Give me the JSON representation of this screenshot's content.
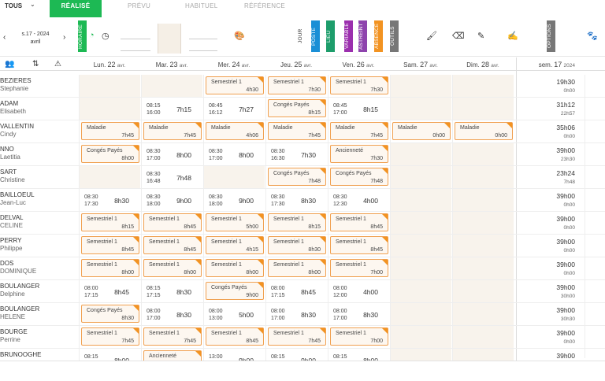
{
  "topbar": {
    "filter_label": "TOUS",
    "tabs": [
      {
        "label": "RÉALISÉ",
        "active": true
      },
      {
        "label": "PRÉVU",
        "active": false
      },
      {
        "label": "HABITUEL",
        "active": false
      },
      {
        "label": "RÉFÉRENCE",
        "active": false
      }
    ]
  },
  "toolbar": {
    "date_line1": "s.17 - 2024",
    "date_line2": "avril",
    "vtabs": [
      {
        "label": "HORAIRE",
        "color": "#1db954"
      },
      {
        "label": "JOUR",
        "color": "transparent"
      },
      {
        "label": "POSTE",
        "color": "#1a8fd6"
      },
      {
        "label": "LIEU",
        "color": "#1d9d6b"
      },
      {
        "label": "VARIABLE",
        "color": "#9b2fae"
      },
      {
        "label": "ASTREINT",
        "color": "#8e44ad"
      },
      {
        "label": "ABSENCE",
        "color": "#f29322"
      },
      {
        "label": "OUTILS",
        "color": "#777777"
      },
      {
        "label": "OPTIONS",
        "color": "#777777"
      }
    ]
  },
  "columns": {
    "days": [
      {
        "name": "Lun.",
        "num": "22",
        "month": "avr."
      },
      {
        "name": "Mar.",
        "num": "23",
        "month": "avr."
      },
      {
        "name": "Mer.",
        "num": "24",
        "month": "avr."
      },
      {
        "name": "Jeu.",
        "num": "25",
        "month": "avr."
      },
      {
        "name": "Ven.",
        "num": "26",
        "month": "avr."
      },
      {
        "name": "Sam.",
        "num": "27",
        "month": "avr."
      },
      {
        "name": "Dim.",
        "num": "28",
        "month": "avr."
      }
    ],
    "week": {
      "label": "sem.",
      "num": "17",
      "year": "2024"
    }
  },
  "rows": [
    {
      "l1": "BEZIERES",
      "l2": "Stephanie",
      "tot": "19h30",
      "sub": "0h00",
      "cells": [
        {
          "t": "off"
        },
        {
          "t": "off"
        },
        {
          "t": "b",
          "l": "Semestriel 1",
          "v": "4h30"
        },
        {
          "t": "b",
          "l": "Semestriel 1",
          "v": "7h30"
        },
        {
          "t": "b",
          "l": "Semestriel 1",
          "v": "7h30"
        },
        {
          "t": "wk"
        },
        {
          "t": "wk"
        }
      ]
    },
    {
      "l1": "ADAM",
      "l2": "Elisabeth",
      "tot": "31h12",
      "sub": "22h57",
      "cells": [
        {
          "t": "off"
        },
        {
          "t": "w",
          "a": "08:15",
          "b": "16:00",
          "d": "7h15"
        },
        {
          "t": "w",
          "a": "08:45",
          "b": "16:12",
          "d": "7h27"
        },
        {
          "t": "b",
          "l": "Congés Payés",
          "v": "8h15"
        },
        {
          "t": "w",
          "a": "08:45",
          "b": "17:00",
          "d": "8h15"
        },
        {
          "t": "wk"
        },
        {
          "t": "wk"
        }
      ]
    },
    {
      "l1": "VALLENTIN",
      "l2": "Cindy",
      "tot": "35h06",
      "sub": "0h00",
      "cells": [
        {
          "t": "b",
          "l": "Maladie",
          "v": "7h45"
        },
        {
          "t": "b",
          "l": "Maladie",
          "v": "7h45"
        },
        {
          "t": "b",
          "l": "Maladie",
          "v": "4h06"
        },
        {
          "t": "b",
          "l": "Maladie",
          "v": "7h45"
        },
        {
          "t": "b",
          "l": "Maladie",
          "v": "7h45"
        },
        {
          "t": "b",
          "l": "Maladie",
          "v": "0h00"
        },
        {
          "t": "b",
          "l": "Maladie",
          "v": "0h00"
        }
      ]
    },
    {
      "l1": "NNO",
      "l2": "Laetitia",
      "tot": "39h00",
      "sub": "23h30",
      "cells": [
        {
          "t": "b",
          "l": "Congés Payés",
          "v": "8h00"
        },
        {
          "t": "w",
          "a": "08:30",
          "b": "17:00",
          "d": "8h00"
        },
        {
          "t": "w",
          "a": "08:30",
          "b": "17:00",
          "d": "8h00"
        },
        {
          "t": "w",
          "a": "08:30",
          "b": "16:30",
          "d": "7h30"
        },
        {
          "t": "b",
          "l": "Ancienneté",
          "v": "7h30"
        },
        {
          "t": "wk"
        },
        {
          "t": "wk"
        }
      ]
    },
    {
      "l1": "SART",
      "l2": "Christine",
      "tot": "23h24",
      "sub": "7h48",
      "cells": [
        {
          "t": "off"
        },
        {
          "t": "w",
          "a": "08:30",
          "b": "16:48",
          "d": "7h48"
        },
        {
          "t": "off"
        },
        {
          "t": "b",
          "l": "Congés Payés",
          "v": "7h48"
        },
        {
          "t": "b",
          "l": "Congés Payés",
          "v": "7h48"
        },
        {
          "t": "wk"
        },
        {
          "t": "wk"
        }
      ]
    },
    {
      "l1": "BAILLOEUL",
      "l2": "Jean-Luc",
      "tot": "39h00",
      "sub": "0h00",
      "cells": [
        {
          "t": "w",
          "a": "08:30",
          "b": "17:30",
          "d": "8h30"
        },
        {
          "t": "w",
          "a": "08:30",
          "b": "18:00",
          "d": "9h00"
        },
        {
          "t": "w",
          "a": "08:30",
          "b": "18:00",
          "d": "9h00"
        },
        {
          "t": "w",
          "a": "08:30",
          "b": "17:30",
          "d": "8h30"
        },
        {
          "t": "w",
          "a": "08:30",
          "b": "12:30",
          "d": "4h00"
        },
        {
          "t": "wk"
        },
        {
          "t": "wk"
        }
      ]
    },
    {
      "l1": "DELVAL",
      "l2": "CELINE",
      "tot": "39h00",
      "sub": "0h00",
      "cells": [
        {
          "t": "b",
          "l": "Semestriel 1",
          "v": "8h15"
        },
        {
          "t": "b",
          "l": "Semestriel 1",
          "v": "8h45"
        },
        {
          "t": "b",
          "l": "Semestriel 1",
          "v": "5h00"
        },
        {
          "t": "b",
          "l": "Semestriel 1",
          "v": "8h15"
        },
        {
          "t": "b",
          "l": "Semestriel 1",
          "v": "8h45"
        },
        {
          "t": "wk"
        },
        {
          "t": "wk"
        }
      ]
    },
    {
      "l1": "PERRY",
      "l2": "Philippe",
      "tot": "39h00",
      "sub": "0h00",
      "cells": [
        {
          "t": "b",
          "l": "Semestriel 1",
          "v": "8h45"
        },
        {
          "t": "b",
          "l": "Semestriel 1",
          "v": "8h45"
        },
        {
          "t": "b",
          "l": "Semestriel 1",
          "v": "4h15"
        },
        {
          "t": "b",
          "l": "Semestriel 1",
          "v": "8h30"
        },
        {
          "t": "b",
          "l": "Semestriel 1",
          "v": "8h45"
        },
        {
          "t": "wk"
        },
        {
          "t": "wk"
        }
      ]
    },
    {
      "l1": "DOS",
      "l2": "DOMINIQUE",
      "tot": "39h00",
      "sub": "0h00",
      "cells": [
        {
          "t": "b",
          "l": "Semestriel 1",
          "v": "8h00"
        },
        {
          "t": "b",
          "l": "Semestriel 1",
          "v": "8h00"
        },
        {
          "t": "b",
          "l": "Semestriel 1",
          "v": "8h00"
        },
        {
          "t": "b",
          "l": "Semestriel 1",
          "v": "8h00"
        },
        {
          "t": "b",
          "l": "Semestriel 1",
          "v": "7h00"
        },
        {
          "t": "wk"
        },
        {
          "t": "wk"
        }
      ]
    },
    {
      "l1": "BOULANGER",
      "l2": "Delphine",
      "tot": "39h00",
      "sub": "30h00",
      "cells": [
        {
          "t": "w",
          "a": "08:00",
          "b": "17:15",
          "d": "8h45"
        },
        {
          "t": "w",
          "a": "08:15",
          "b": "17:15",
          "d": "8h30"
        },
        {
          "t": "b",
          "l": "Congés Payés",
          "v": "9h00"
        },
        {
          "t": "w",
          "a": "08:00",
          "b": "17:15",
          "d": "8h45"
        },
        {
          "t": "w",
          "a": "08:00",
          "b": "12:00",
          "d": "4h00"
        },
        {
          "t": "wk"
        },
        {
          "t": "wk"
        }
      ]
    },
    {
      "l1": "BOULANGER",
      "l2": "HELENE",
      "tot": "39h00",
      "sub": "30h30",
      "cells": [
        {
          "t": "b",
          "l": "Congés Payés",
          "v": "8h30"
        },
        {
          "t": "w",
          "a": "08:00",
          "b": "17:00",
          "d": "8h30"
        },
        {
          "t": "w",
          "a": "08:00",
          "b": "13:00",
          "d": "5h00"
        },
        {
          "t": "w",
          "a": "08:00",
          "b": "17:00",
          "d": "8h30"
        },
        {
          "t": "w",
          "a": "08:00",
          "b": "17:00",
          "d": "8h30"
        },
        {
          "t": "wk"
        },
        {
          "t": "wk"
        }
      ]
    },
    {
      "l1": "BOURGE",
      "l2": "Perrine",
      "tot": "39h00",
      "sub": "0h00",
      "cells": [
        {
          "t": "b",
          "l": "Semestriel 1",
          "v": "7h45"
        },
        {
          "t": "b",
          "l": "Semestriel 1",
          "v": "7h45"
        },
        {
          "t": "b",
          "l": "Semestriel 1",
          "v": "8h45"
        },
        {
          "t": "b",
          "l": "Semestriel 1",
          "v": "7h45"
        },
        {
          "t": "b",
          "l": "Semestriel 1",
          "v": "7h00"
        },
        {
          "t": "wk"
        },
        {
          "t": "wk"
        }
      ]
    },
    {
      "l1": "BRUNOOGHE",
      "l2": "",
      "tot": "39h00",
      "sub": "",
      "cells": [
        {
          "t": "w",
          "a": "08:15",
          "b": "",
          "d": "8h00"
        },
        {
          "t": "b",
          "l": "Ancienneté",
          "v": ""
        },
        {
          "t": "w",
          "a": "13:00",
          "b": "",
          "d": "9h00"
        },
        {
          "t": "w",
          "a": "08:15",
          "b": "",
          "d": "9h00"
        },
        {
          "t": "w",
          "a": "08:15",
          "b": "",
          "d": "8h00"
        },
        {
          "t": "wk"
        },
        {
          "t": "wk"
        }
      ]
    }
  ]
}
